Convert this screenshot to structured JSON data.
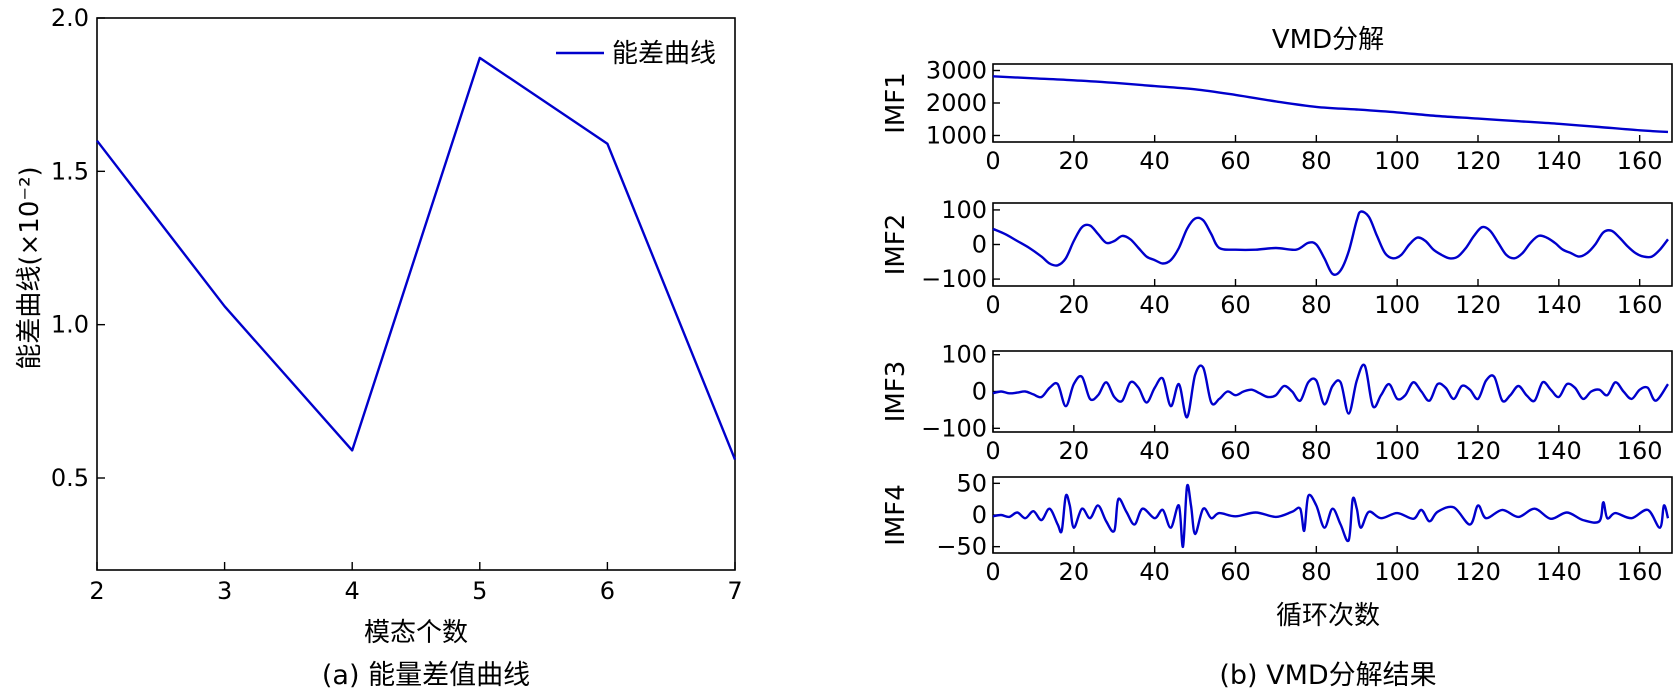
{
  "chart_data": [
    {
      "type": "line",
      "caption": "(a) 能量差值曲线",
      "xlabel": "模态个数",
      "ylabel": "能差曲线(×10⁻²)",
      "xlim": [
        2,
        7
      ],
      "ylim": [
        0.2,
        2.0
      ],
      "xticks": [
        "2",
        "3",
        "4",
        "5",
        "6",
        "7"
      ],
      "yticks": [
        "0.5",
        "1.0",
        "1.5",
        "2.0"
      ],
      "legend": "top-right",
      "series": [
        {
          "name": "能差曲线",
          "x": [
            2,
            3,
            4,
            5,
            6,
            7
          ],
          "values": [
            1.6,
            1.06,
            0.59,
            1.87,
            1.59,
            0.56
          ]
        }
      ]
    },
    {
      "type": "line",
      "title": "VMD分解",
      "caption": "(b) VMD分解结果",
      "xlabel": "循环次数",
      "xlim": [
        0,
        168
      ],
      "xticks": [
        "0",
        "20",
        "40",
        "60",
        "80",
        "100",
        "120",
        "140",
        "160"
      ],
      "panels": [
        {
          "ylabel": "IMF1",
          "ylim": [
            800,
            3200
          ],
          "yticks": [
            "1000",
            "2000",
            "3000"
          ],
          "x": [
            0,
            10,
            20,
            30,
            40,
            50,
            60,
            70,
            80,
            90,
            100,
            110,
            120,
            130,
            140,
            150,
            160,
            167
          ],
          "values": [
            2820,
            2760,
            2700,
            2620,
            2520,
            2420,
            2250,
            2050,
            1880,
            1800,
            1710,
            1600,
            1520,
            1440,
            1360,
            1260,
            1160,
            1110
          ]
        },
        {
          "ylabel": "IMF2",
          "ylim": [
            -120,
            120
          ],
          "yticks": [
            "100",
            "0",
            "−100"
          ],
          "x": [
            0,
            3,
            6,
            9,
            12,
            14,
            16,
            18,
            20,
            22,
            24,
            26,
            28,
            30,
            32,
            34,
            36,
            38,
            40,
            42,
            44,
            46,
            48,
            50,
            52,
            54,
            56,
            60,
            65,
            70,
            75,
            78,
            80,
            82,
            84,
            86,
            88,
            90,
            91,
            93,
            95,
            97,
            99,
            101,
            103,
            105,
            107,
            109,
            111,
            113,
            115,
            117,
            119,
            121,
            123,
            125,
            127,
            129,
            131,
            133,
            135,
            137,
            139,
            141,
            143,
            145,
            147,
            149,
            151,
            153,
            155,
            157,
            159,
            161,
            163,
            165,
            167
          ],
          "values": [
            45,
            30,
            10,
            -10,
            -35,
            -55,
            -60,
            -40,
            10,
            50,
            55,
            30,
            5,
            10,
            25,
            15,
            -10,
            -35,
            -45,
            -55,
            -45,
            -10,
            45,
            75,
            70,
            30,
            -10,
            -15,
            -15,
            -10,
            -15,
            5,
            0,
            -40,
            -85,
            -75,
            -20,
            70,
            95,
            80,
            25,
            -25,
            -40,
            -30,
            0,
            20,
            10,
            -15,
            -30,
            -40,
            -35,
            -10,
            25,
            50,
            40,
            5,
            -30,
            -40,
            -25,
            5,
            25,
            20,
            5,
            -15,
            -25,
            -35,
            -25,
            0,
            35,
            40,
            20,
            -5,
            -25,
            -35,
            -35,
            -15,
            15
          ]
        },
        {
          "ylabel": "IMF3",
          "ylim": [
            -110,
            110
          ],
          "yticks": [
            "100",
            "0",
            "−100"
          ],
          "x": [
            0,
            2,
            4,
            6,
            8,
            10,
            12,
            14,
            16,
            18,
            20,
            22,
            24,
            26,
            28,
            30,
            32,
            34,
            36,
            38,
            40,
            42,
            44,
            46,
            48,
            50,
            52,
            54,
            56,
            58,
            60,
            62,
            64,
            66,
            68,
            70,
            72,
            74,
            76,
            78,
            80,
            82,
            84,
            86,
            88,
            90,
            92,
            94,
            96,
            98,
            100,
            102,
            104,
            106,
            108,
            110,
            112,
            114,
            116,
            118,
            120,
            122,
            124,
            126,
            128,
            130,
            132,
            134,
            136,
            138,
            140,
            142,
            144,
            146,
            148,
            150,
            152,
            154,
            156,
            158,
            160,
            162,
            164,
            167
          ],
          "values": [
            -5,
            0,
            -5,
            -3,
            0,
            -8,
            -15,
            10,
            20,
            -40,
            20,
            40,
            -20,
            -10,
            25,
            -15,
            -25,
            25,
            10,
            -30,
            10,
            35,
            -40,
            20,
            -70,
            45,
            65,
            -30,
            -20,
            0,
            -10,
            0,
            5,
            -5,
            -15,
            -10,
            15,
            0,
            -25,
            25,
            30,
            -35,
            15,
            25,
            -60,
            30,
            70,
            -40,
            -10,
            20,
            -20,
            -10,
            25,
            0,
            -25,
            20,
            10,
            -20,
            15,
            5,
            -20,
            30,
            40,
            -25,
            -10,
            15,
            -10,
            -25,
            25,
            5,
            -15,
            20,
            10,
            -20,
            0,
            5,
            -10,
            25,
            0,
            -20,
            5,
            10,
            -25,
            20
          ]
        },
        {
          "ylabel": "IMF4",
          "ylim": [
            -60,
            60
          ],
          "yticks": [
            "50",
            "0",
            "−50"
          ],
          "x": [
            0,
            2,
            4,
            6,
            8,
            10,
            12,
            14,
            16,
            17,
            18,
            19,
            20,
            22,
            24,
            26,
            28,
            30,
            31,
            33,
            35,
            37,
            40,
            42,
            44,
            46,
            47,
            48,
            49,
            50,
            52,
            54,
            56,
            60,
            65,
            70,
            74,
            76,
            77,
            78,
            80,
            82,
            84,
            86,
            88,
            89,
            90,
            91,
            93,
            96,
            100,
            104,
            106,
            108,
            110,
            114,
            118,
            120,
            122,
            126,
            130,
            134,
            138,
            142,
            146,
            150,
            151,
            152,
            154,
            158,
            162,
            165,
            166,
            167
          ],
          "values": [
            -2,
            0,
            -3,
            4,
            -5,
            6,
            -8,
            10,
            -15,
            -25,
            30,
            15,
            -20,
            10,
            -5,
            15,
            -10,
            -25,
            25,
            5,
            -15,
            10,
            -5,
            8,
            -20,
            15,
            -50,
            45,
            15,
            -30,
            10,
            -5,
            3,
            -2,
            4,
            -3,
            5,
            10,
            -25,
            30,
            15,
            -20,
            10,
            -15,
            -40,
            25,
            10,
            -20,
            5,
            -5,
            3,
            -6,
            8,
            -10,
            5,
            12,
            -15,
            15,
            -5,
            8,
            -3,
            10,
            -6,
            4,
            -8,
            -10,
            20,
            -5,
            3,
            -5,
            8,
            -20,
            15,
            -5
          ]
        }
      ]
    }
  ]
}
